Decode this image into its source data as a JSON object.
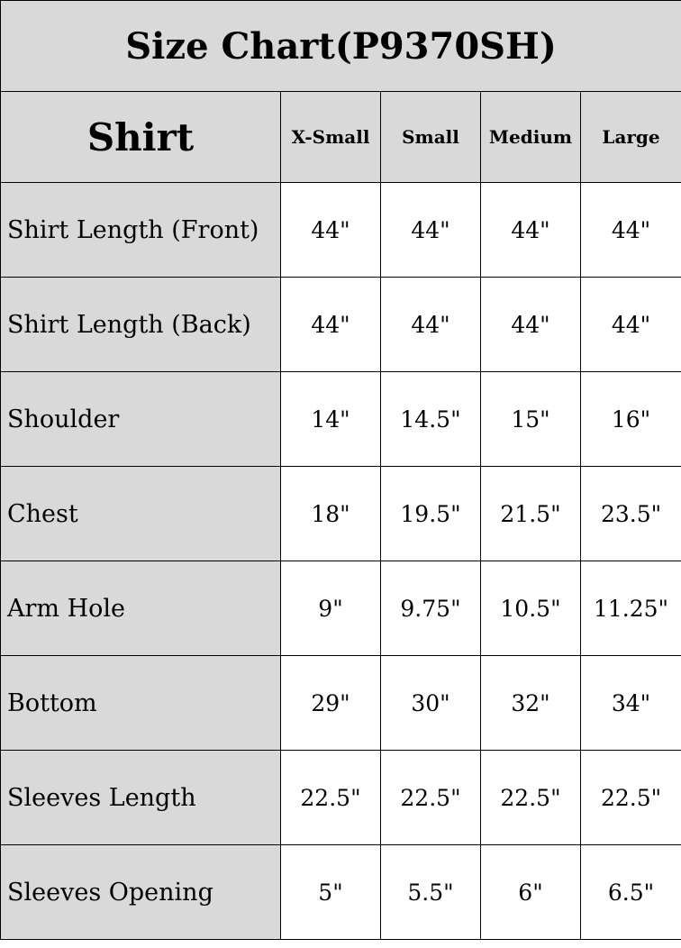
{
  "title": "Size Chart(P9370SH)",
  "header": {
    "section": "Shirt",
    "sizes": [
      "X-Small",
      "Small",
      "Medium",
      "Large"
    ]
  },
  "rows": [
    {
      "label": "Shirt Length (Front)",
      "values": [
        "44\"",
        "44\"",
        "44\"",
        "44\""
      ]
    },
    {
      "label": "Shirt Length (Back)",
      "values": [
        "44\"",
        "44\"",
        "44\"",
        "44\""
      ]
    },
    {
      "label": "Shoulder",
      "values": [
        "14\"",
        "14.5\"",
        "15\"",
        "16\""
      ]
    },
    {
      "label": "Chest",
      "values": [
        "18\"",
        "19.5\"",
        "21.5\"",
        "23.5\""
      ]
    },
    {
      "label": "Arm Hole",
      "values": [
        "9\"",
        "9.75\"",
        "10.5\"",
        "11.25\""
      ]
    },
    {
      "label": "Bottom",
      "values": [
        "29\"",
        "30\"",
        "32\"",
        "34\""
      ]
    },
    {
      "label": "Sleeves Length",
      "values": [
        "22.5\"",
        "22.5\"",
        "22.5\"",
        "22.5\""
      ]
    },
    {
      "label": "Sleeves Opening",
      "values": [
        "5\"",
        "5.5\"",
        "6\"",
        "6.5\""
      ]
    }
  ],
  "colors": {
    "header_bg": "#d9d9d9",
    "cell_bg": "#ffffff",
    "border": "#000000"
  }
}
